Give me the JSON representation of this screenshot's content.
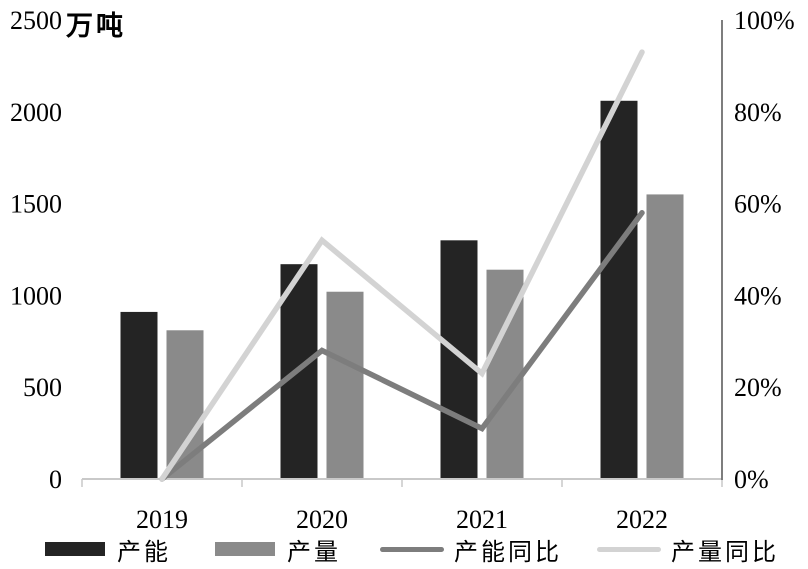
{
  "chart_data": {
    "type": "bar",
    "subtype": "combo-bar-line",
    "title": "",
    "unit_label": "万吨",
    "categories": [
      "2019",
      "2020",
      "2021",
      "2022"
    ],
    "series": [
      {
        "name": "产能",
        "kind": "bar",
        "axis": "left",
        "color": "#242424",
        "values": [
          910,
          1170,
          1300,
          2060
        ]
      },
      {
        "name": "产量",
        "kind": "bar",
        "axis": "left",
        "color": "#8a8a8a",
        "values": [
          810,
          1020,
          1140,
          1550
        ]
      },
      {
        "name": "产能同比",
        "kind": "line",
        "axis": "right",
        "color": "#7d7d7d",
        "values": [
          0,
          28,
          11,
          58
        ]
      },
      {
        "name": "产量同比",
        "kind": "line",
        "axis": "right",
        "color": "#d3d3d3",
        "values": [
          0,
          52,
          23,
          93
        ]
      }
    ],
    "left_axis": {
      "min": 0,
      "max": 2500,
      "step": 500,
      "tick_labels": [
        "0",
        "500",
        "1000",
        "1500",
        "2000",
        "2500"
      ]
    },
    "right_axis": {
      "min": 0,
      "max": 100,
      "step": 20,
      "tick_labels": [
        "0%",
        "20%",
        "40%",
        "60%",
        "80%",
        "100%"
      ]
    },
    "gridlines": false,
    "legend_position": "bottom",
    "axis_colors": {
      "baseline": "#c9c9c9",
      "right_axis": "#6f6f6f",
      "labels": "#000000"
    }
  }
}
